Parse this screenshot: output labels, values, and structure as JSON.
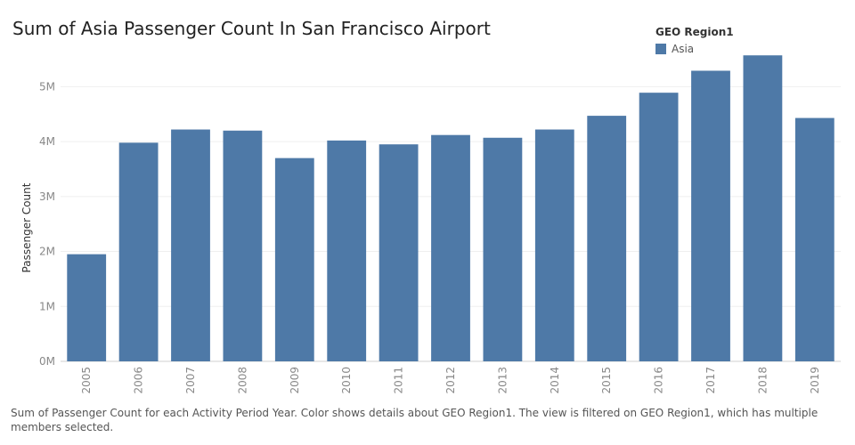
{
  "chart_data": {
    "type": "bar",
    "title": "Sum of Asia Passenger Count In San Francisco Airport",
    "xlabel": "",
    "ylabel": "Passenger Count",
    "categories": [
      "2005",
      "2006",
      "2007",
      "2008",
      "2009",
      "2010",
      "2011",
      "2012",
      "2013",
      "2014",
      "2015",
      "2016",
      "2017",
      "2018",
      "2019"
    ],
    "series": [
      {
        "name": "Asia",
        "values": [
          1950000,
          3980000,
          4220000,
          4200000,
          3700000,
          4020000,
          3950000,
          4120000,
          4070000,
          4220000,
          4470000,
          4890000,
          5290000,
          5570000,
          4430000
        ]
      }
    ],
    "ylim": [
      0,
      5800000
    ],
    "yticks": [
      0,
      1000000,
      2000000,
      3000000,
      4000000,
      5000000
    ],
    "ytick_labels": [
      "0M",
      "1M",
      "2M",
      "3M",
      "4M",
      "5M"
    ],
    "grid": true,
    "legend_placement": "top-right",
    "bar_color": "#4e79a7"
  },
  "legend": {
    "title": "GEO Region1",
    "items": [
      {
        "label": "Asia"
      }
    ]
  },
  "caption": "Sum of Passenger Count for each Activity Period Year.  Color shows details about GEO Region1. The view is filtered on GEO Region1, which has multiple members selected."
}
